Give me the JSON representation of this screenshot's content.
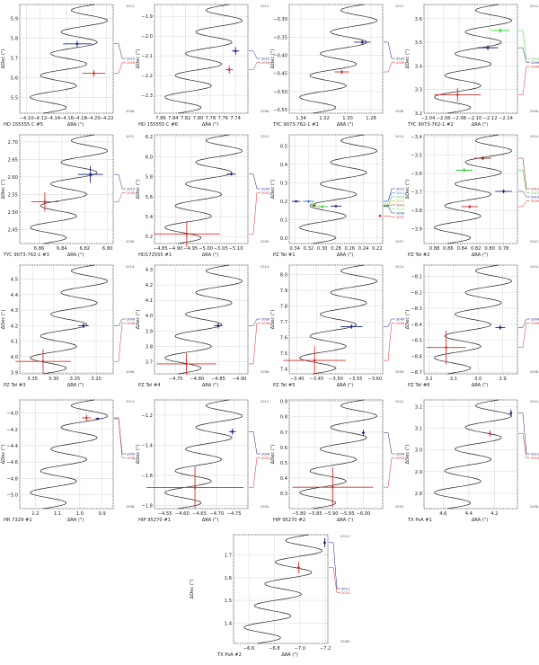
{
  "figure": {
    "title": "",
    "ylabel": "ΔDec (\")",
    "xlabel": "ΔRA (\")"
  },
  "chart_data": [
    {
      "type": "line",
      "title": "HD 155555 C #5",
      "xlabel": "ΔRA (\")",
      "ylabel": "ΔDec (\")",
      "xlim": [
        -4.09,
        -4.23
      ],
      "ylim": [
        5.42,
        5.97
      ],
      "xticks": [
        "-4.10",
        "-4.12",
        "-4.14",
        "-4.16",
        "-4.18",
        "-4.20",
        "-4.22"
      ],
      "yticks": [
        "5.5",
        "5.6",
        "5.7",
        "5.8",
        "5.9"
      ],
      "epoch_top": "2012.0",
      "epoch_bottom": "2008.0",
      "points": [
        {
          "label": "2010.3",
          "color": "#1a237e",
          "x": -4.176,
          "y": 5.771,
          "ex": 0.021,
          "ey": 0.016,
          "track_y": 5.76
        },
        {
          "label": "2009.3",
          "color": "#d32f2f",
          "x": -4.201,
          "y": 5.622,
          "ex": 0.017,
          "ey": 0.017,
          "track_y": 5.62
        }
      ]
    },
    {
      "type": "line",
      "title": "HD 155555 C #6",
      "xlabel": "ΔRA (\")",
      "ylabel": "ΔDec (\")",
      "xlim": [
        7.87,
        7.72
      ],
      "ylim": [
        -2.39,
        -1.84
      ],
      "xticks": [
        "7.86",
        "7.84",
        "7.82",
        "7.80",
        "7.78",
        "7.76",
        "7.74"
      ],
      "yticks": [
        "-1.9",
        "-2.0",
        "-2.1",
        "-2.2",
        "-2.3"
      ],
      "epoch_top": "2012.0",
      "epoch_bottom": "2008.0",
      "points": [
        {
          "label": "2010.3",
          "color": "#1a237e",
          "x": 7.74,
          "y": -2.075,
          "ex": 0.006,
          "ey": 0.02,
          "track_y": -2.03
        },
        {
          "label": "2009.3",
          "color": "#d32f2f",
          "x": 7.75,
          "y": -2.17,
          "ex": 0.006,
          "ey": 0.02,
          "track_y": -2.17
        }
      ]
    },
    {
      "type": "line",
      "title": "TYC 9073-762-1 #1",
      "xlabel": "ΔRA (\")",
      "ylabel": "ΔDec (\")",
      "xlim": [
        1.35,
        1.27
      ],
      "ylim": [
        -0.56,
        -0.26
      ],
      "xticks": [
        "1.34",
        "1.32",
        "1.30",
        "1.28"
      ],
      "yticks": [
        "-0.30",
        "-0.35",
        "-0.40",
        "-0.45",
        "-0.50",
        "-0.55"
      ],
      "epoch_top": "2012.0",
      "epoch_bottom": "2008.0",
      "points": [
        {
          "label": "2010.4",
          "color": "#1a237e",
          "x": 1.2875,
          "y": -0.364,
          "ex": 0.007,
          "ey": 0.005,
          "track_y": -0.365
        },
        {
          "label": "2009.3",
          "color": "#d32f2f",
          "x": 1.305,
          "y": -0.446,
          "ex": 0.006,
          "ey": 0.006,
          "track_y": -0.45
        }
      ]
    },
    {
      "type": "line",
      "title": "TYC 9073-762-1 #2",
      "xlabel": "ΔRA (\")",
      "ylabel": "ΔDec (\")",
      "xlim": [
        -2.035,
        -2.155
      ],
      "ylim": [
        3.2,
        3.66
      ],
      "xticks": [
        "-2.04",
        "-2.06",
        "-2.08",
        "-2.10",
        "-2.12",
        "-2.14"
      ],
      "yticks": [
        "3.2",
        "3.3",
        "3.4",
        "3.5",
        "3.6"
      ],
      "epoch_top": "2012.0",
      "epoch_bottom": "2006.0",
      "points": [
        {
          "label": "2010.4",
          "color": "#33cc33",
          "x": -2.133,
          "y": 3.55,
          "ex": 0.012,
          "ey": 0.01,
          "track_y": 3.55
        },
        {
          "label": "2009.3",
          "color": "#1a237e",
          "x": -2.117,
          "y": 3.477,
          "ex": 0.013,
          "ey": 0.01,
          "track_y": 3.46
        },
        {
          "label": "2006.4(H)",
          "color": "#d32f2f",
          "x": -2.078,
          "y": 3.278,
          "ex": 0.03,
          "ey": 0.028,
          "track_y": 3.245
        }
      ]
    },
    {
      "type": "line",
      "title": "TYC 9073-762-1 #3",
      "xlabel": "ΔRA (\")",
      "ylabel": "ΔDec (\")",
      "xlim": [
        6.877,
        6.795
      ],
      "ylim": [
        2.41,
        2.72
      ],
      "xticks": [
        "6.86",
        "6.84",
        "6.82",
        "6.80"
      ],
      "yticks": [
        "2.45",
        "2.50",
        "2.55",
        "2.60",
        "2.65",
        "2.70"
      ],
      "epoch_top": "2012.0",
      "epoch_bottom": "2008.0",
      "points": [
        {
          "label": "2010.4",
          "color": "#1a237e",
          "x": 6.815,
          "y": 2.607,
          "ex": 0.011,
          "ey": 0.024,
          "track_y": 2.607
        },
        {
          "label": "2009.3",
          "color": "#d32f2f",
          "x": 6.855,
          "y": 2.529,
          "ex": 0.012,
          "ey": 0.027,
          "track_y": 2.518
        }
      ]
    },
    {
      "type": "line",
      "title": "HD172555 #1",
      "xlabel": "ΔRA (\")",
      "ylabel": "ΔDec (\")",
      "xlim": [
        -4.83,
        -5.14
      ],
      "ylim": [
        5.13,
        6.22
      ],
      "xticks": [
        "-4.85",
        "-4.90",
        "-4.95",
        "-5.00",
        "-5.05",
        "-5.10"
      ],
      "yticks": [
        "5.2",
        "5.4",
        "5.6",
        "5.8",
        "6.0",
        "6.2"
      ],
      "epoch_top": "2012.0",
      "epoch_bottom": "2005.0",
      "points": [
        {
          "label": "2009.3",
          "color": "#1a237e",
          "x": -5.085,
          "y": 5.826,
          "ex": 0.015,
          "ey": 0.015,
          "track_y": 5.82
        },
        {
          "label": "2005.4(H)",
          "color": "#d32f2f",
          "x": -4.937,
          "y": 5.226,
          "ex": 0.11,
          "ey": 0.13,
          "track_y": 5.24
        }
      ]
    },
    {
      "type": "line",
      "title": "PZ Tel #1",
      "xlabel": "ΔRA (\")",
      "ylabel": "ΔDec (\")",
      "xlim": [
        0.348,
        0.212
      ],
      "ylim": [
        -0.03,
        0.56
      ],
      "xticks": [
        "0.34",
        "0.32",
        "0.30",
        "0.28",
        "0.26",
        "0.24",
        "0.22"
      ],
      "yticks": [
        "0.0",
        "0.1",
        "0.2",
        "0.3",
        "0.4",
        "0.5"
      ],
      "epoch_top": "2014.0",
      "epoch_bottom": "2007.0",
      "points": [
        {
          "label": "2012.5",
          "color": "#1a237e",
          "x": 0.338,
          "y": 0.199,
          "ex": 0.006,
          "ey": 0.004
        },
        {
          "label": "2011.3",
          "color": "#3a6fd8",
          "x": 0.32,
          "y": 0.199,
          "ex": 0.008,
          "ey": 0.005
        },
        {
          "label": "2010.4",
          "color": "#33cc33",
          "x": 0.3,
          "y": 0.17,
          "ex": 0.008,
          "ey": 0.005
        },
        {
          "label": "2010.3(V)",
          "color": "#d4a017",
          "x": 0.312,
          "y": 0.18,
          "ex": 0.003,
          "ey": 0.004
        },
        {
          "label": "2010.3(V)",
          "color": "#6b4423",
          "x": 0.312,
          "y": 0.176,
          "ex": 0.003,
          "ey": 0.004
        },
        {
          "label": "2009.7(V)",
          "color": "#88ee88",
          "x": 0.314,
          "y": 0.185,
          "ex": 0.003,
          "ey": 0.004
        },
        {
          "label": "2009.5",
          "color": "#1a237e",
          "x": 0.28,
          "y": 0.173,
          "ex": 0.008,
          "ey": 0.005
        },
        {
          "label": "2007.4(V)",
          "color": "#d32f2f",
          "x": 0.216,
          "y": 0.12,
          "ex": 0.002,
          "ey": 0.003
        }
      ]
    },
    {
      "type": "line",
      "title": "PZ Tel #2",
      "xlabel": "ΔRA (\")",
      "ylabel": "ΔDec (\")",
      "xlim": [
        0.895,
        0.76
      ],
      "ylim": [
        -3.98,
        -3.39
      ],
      "xticks": [
        "0.88",
        "0.86",
        "0.84",
        "0.82",
        "0.80",
        "0.78"
      ],
      "yticks": [
        "-3.4",
        "-3.5",
        "-3.6",
        "-3.7",
        "-3.8",
        "-3.9"
      ],
      "epoch_top": "2014.0",
      "epoch_bottom": "2007.0",
      "points": [
        {
          "label": "2012.3",
          "color": "#8b1a1a",
          "x": 0.81,
          "y": -3.517,
          "ex": 0.012,
          "ey": 0.01
        },
        {
          "label": "2011.3",
          "color": "#33cc33",
          "x": 0.837,
          "y": -3.582,
          "ex": 0.012,
          "ey": 0.01
        },
        {
          "label": "2010.4",
          "color": "#1a237e",
          "x": 0.78,
          "y": -3.697,
          "ex": 0.012,
          "ey": 0.01
        },
        {
          "label": "2009.3",
          "color": "#d32f2f",
          "x": 0.829,
          "y": -3.78,
          "ex": 0.012,
          "ey": 0.01
        }
      ]
    },
    {
      "type": "line",
      "title": "PZ Tel #3",
      "xlabel": "ΔRA (\")",
      "ylabel": "ΔDec (\")",
      "xlim": [
        3.38,
        3.16
      ],
      "ylim": [
        3.89,
        4.59
      ],
      "xticks": [
        "3.35",
        "3.30",
        "3.25",
        "3.20"
      ],
      "yticks": [
        "3.9",
        "4.0",
        "4.1",
        "4.2",
        "4.3",
        "4.4",
        "4.5"
      ],
      "epoch_top": "2014.0",
      "epoch_bottom": "2006.0",
      "points": [
        {
          "label": "2009.3",
          "color": "#1a237e",
          "x": 3.23,
          "y": 4.2,
          "ex": 0.012,
          "ey": 0.015
        },
        {
          "label": "2006.8(C)",
          "color": "#d32f2f",
          "x": 3.325,
          "y": 3.97,
          "ex": 0.065,
          "ey": 0.08
        }
      ]
    },
    {
      "type": "line",
      "title": "PZ Tel #4",
      "xlabel": "ΔRA (\")",
      "ylabel": "ΔDec (\")",
      "xlim": [
        -4.7,
        -4.92
      ],
      "ylim": [
        3.62,
        4.33
      ],
      "xticks": [
        "-4.75",
        "-4.80",
        "-4.85",
        "-4.90"
      ],
      "yticks": [
        "3.7",
        "3.8",
        "3.9",
        "4.0",
        "4.1",
        "4.2",
        "4.3"
      ],
      "epoch_top": "2014.0",
      "epoch_bottom": "2006.0",
      "points": [
        {
          "label": "2009.3",
          "color": "#1a237e",
          "x": -4.85,
          "y": 3.935,
          "ex": 0.01,
          "ey": 0.02
        },
        {
          "label": "2006.8(C)",
          "color": "#d32f2f",
          "x": -4.775,
          "y": 3.685,
          "ex": 0.07,
          "ey": 0.07
        }
      ]
    },
    {
      "type": "line",
      "title": "PZ Tel #5",
      "xlabel": "ΔRA (\")",
      "ylabel": "ΔDec (\")",
      "xlim": [
        -3.38,
        -3.62
      ],
      "ylim": [
        7.37,
        8.06
      ],
      "xticks": [
        "-3.40",
        "-3.45",
        "-3.50",
        "-3.55",
        "-3.60"
      ],
      "yticks": [
        "7.4",
        "7.5",
        "7.6",
        "7.7",
        "7.8",
        "7.9",
        "8.0"
      ],
      "epoch_top": "2014.0",
      "epoch_bottom": "2006.0",
      "points": [
        {
          "label": "2009.3",
          "color": "#1a237e",
          "x": -3.54,
          "y": 7.67,
          "ex": 0.028,
          "ey": 0.015
        },
        {
          "label": "2006.8(C)",
          "color": "#d32f2f",
          "x": -3.445,
          "y": 7.455,
          "ex": 0.08,
          "ey": 0.09
        }
      ]
    },
    {
      "type": "line",
      "title": "PZ Tel #6",
      "xlabel": "ΔRA (\")",
      "ylabel": "ΔDec (\")",
      "xlim": [
        3.22,
        2.84
      ],
      "ylim": [
        -8.71,
        -8.03
      ],
      "xticks": [
        "3.2",
        "3.1",
        "3.0",
        "2.9"
      ],
      "yticks": [
        "-8.1",
        "-8.2",
        "-8.3",
        "-8.4",
        "-8.5",
        "-8.6",
        "-8.7"
      ],
      "epoch_top": "2014.0",
      "epoch_bottom": "2006.0",
      "points": [
        {
          "label": "2009.3",
          "color": "#1a237e",
          "x": 2.91,
          "y": -8.42,
          "ex": 0.02,
          "ey": 0.015
        },
        {
          "label": "2006.8(C)",
          "color": "#d32f2f",
          "x": 3.13,
          "y": -8.545,
          "ex": 0.08,
          "ey": 0.105
        }
      ]
    },
    {
      "type": "line",
      "title": "HR 7329 #1",
      "xlabel": "ΔRA (\")",
      "ylabel": "ΔDec (\")",
      "xlim": [
        1.27,
        0.85
      ],
      "ylim": [
        -5.17,
        -3.84
      ],
      "xticks": [
        "1.2",
        "1.1",
        "1.0",
        "0.9"
      ],
      "yticks": [
        "-4.0",
        "-4.2",
        "-4.4",
        "-4.6",
        "-4.8",
        "-5.0"
      ],
      "epoch_top": "2012.0",
      "epoch_bottom": "1998.0",
      "points": [
        {
          "label": "2009.3",
          "color": "#1a237e",
          "x": 0.92,
          "y": -4.07,
          "ex": 0.01,
          "ey": 0.01
        },
        {
          "label": "1998.5(H)",
          "color": "#d32f2f",
          "x": 0.97,
          "y": -4.06,
          "ex": 0.02,
          "ey": 0.04
        }
      ]
    },
    {
      "type": "line",
      "title": "HIP 95270 #1",
      "xlabel": "ΔRA (\")",
      "ylabel": "ΔDec (\")",
      "xlim": [
        -4.52,
        -4.79
      ],
      "ylim": [
        -1.82,
        -1.1
      ],
      "xticks": [
        "-4.55",
        "-4.60",
        "-4.65",
        "-4.70",
        "-4.75"
      ],
      "yticks": [
        "-1.2",
        "-1.4",
        "-1.6",
        "-1.8"
      ],
      "epoch_top": "2012.0",
      "epoch_bottom": "2005.0",
      "points": [
        {
          "label": "2009.3",
          "color": "#1a237e",
          "x": -4.745,
          "y": -1.31,
          "ex": 0.01,
          "ey": 0.02
        },
        {
          "label": "2005.5(H)",
          "color": "#d32f2f",
          "x": -4.637,
          "y": -1.68,
          "ex": 0.14,
          "ey": 0.14
        }
      ]
    },
    {
      "type": "line",
      "title": "HIP 95270 #2",
      "xlabel": "ΔRA (\")",
      "ylabel": "ΔDec (\")",
      "xlim": [
        -5.77,
        -6.06
      ],
      "ylim": [
        0.2,
        0.91
      ],
      "xticks": [
        "-5.80",
        "-5.85",
        "-5.90",
        "-5.95",
        "-6.00"
      ],
      "yticks": [
        "0.3",
        "0.4",
        "0.5",
        "0.6",
        "0.7",
        "0.8",
        "0.9"
      ],
      "epoch_top": "2012.0",
      "epoch_bottom": "2005.0",
      "points": [
        {
          "label": "2009.3",
          "color": "#1a237e",
          "x": -6.0,
          "y": 0.695,
          "ex": 0.005,
          "ey": 0.02
        },
        {
          "label": "2005.5(H)",
          "color": "#d32f2f",
          "x": -5.905,
          "y": 0.34,
          "ex": 0.125,
          "ey": 0.13
        }
      ]
    },
    {
      "type": "line",
      "title": "TX PsA #1",
      "xlabel": "ΔRA (\")",
      "ylabel": "ΔDec (\")",
      "xlim": [
        4.75,
        4.02
      ],
      "ylim": [
        2.73,
        3.23
      ],
      "xticks": [
        "4.6",
        "4.4",
        "4.2"
      ],
      "yticks": [
        "2.8",
        "2.9",
        "3.0",
        "3.1",
        "3.2"
      ],
      "epoch_top": "2012.0",
      "epoch_bottom": "2008.0",
      "points": [
        {
          "label": "2011.7",
          "color": "#1a237e",
          "x": 4.07,
          "y": 3.17,
          "ex": 0.01,
          "ey": 0.015
        },
        {
          "label": "2010.7",
          "color": "#d32f2f",
          "x": 4.235,
          "y": 3.075,
          "ex": 0.01,
          "ey": 0.015
        }
      ]
    },
    {
      "type": "line",
      "title": "TX PsA #2",
      "xlabel": "ΔRA (\")",
      "ylabel": "ΔDec (\")",
      "xlim": [
        -6.48,
        -7.22
      ],
      "ylim": [
        1.31,
        1.79
      ],
      "xticks": [
        "-6.6",
        "-6.8",
        "-7.0",
        "-7.2"
      ],
      "yticks": [
        "1.4",
        "1.5",
        "1.6",
        "1.7"
      ],
      "epoch_top": "2012.0",
      "epoch_bottom": "2008.0",
      "points": [
        {
          "label": "2011.7",
          "color": "#1a237e",
          "x": -7.195,
          "y": 1.755,
          "ex": 0.01,
          "ey": 0.02
        },
        {
          "label": "2010.7",
          "color": "#d32f2f",
          "x": -6.99,
          "y": 1.645,
          "ex": 0.01,
          "ey": 0.025
        }
      ]
    }
  ]
}
